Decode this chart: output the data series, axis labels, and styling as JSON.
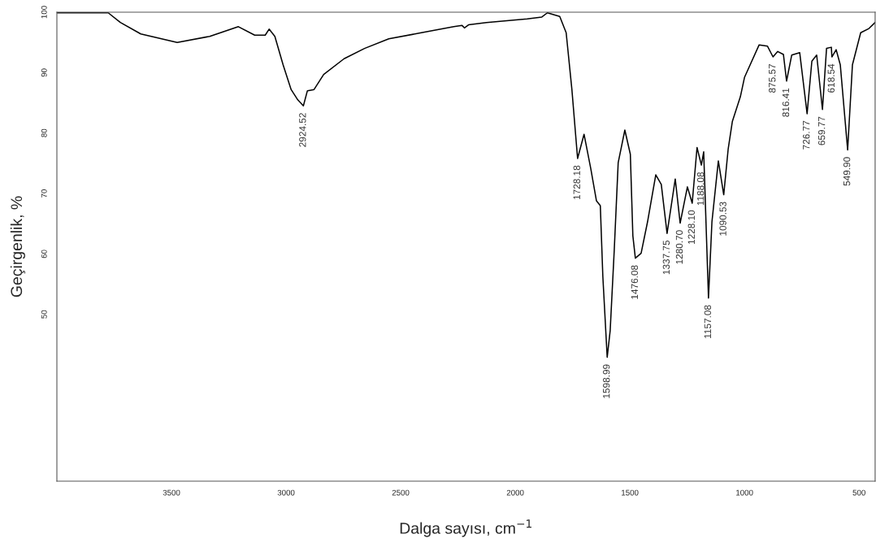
{
  "chart_data": {
    "type": "line",
    "xlabel": "Dalga sayısı, cm$^{−1}$",
    "ylabel": "Geçirgenlik, %",
    "xlim": [
      4000,
      430
    ],
    "ylim": [
      22.4,
      100
    ],
    "xticks": [
      3500,
      3000,
      2500,
      2000,
      1500,
      1000,
      500
    ],
    "yticks": [
      100,
      90,
      80,
      70,
      60,
      50
    ],
    "marker": "none",
    "line_style": "solid",
    "series": [
      {
        "color": "#000000",
        "x": [
          4000,
          3776,
          3723,
          3634,
          3475,
          3333,
          3208,
          3137,
          3091,
          3074,
          3049,
          3013,
          2978,
          2949,
          2924.52,
          2907,
          2878,
          2836,
          2747,
          2658,
          2552,
          2410,
          2268,
          2232,
          2222,
          2204,
          2126,
          1948,
          1884,
          1860,
          1806,
          1778,
          1753,
          1728.18,
          1700,
          1671,
          1646,
          1629,
          1618,
          1598.99,
          1586,
          1568,
          1551,
          1522,
          1498,
          1487,
          1476.08,
          1451,
          1423,
          1387,
          1363,
          1337.75,
          1302,
          1280.7,
          1249,
          1228.1,
          1207,
          1188.08,
          1178,
          1157.08,
          1142,
          1114,
          1090.53,
          1071,
          1053,
          1018,
          1000,
          936,
          900,
          875.57,
          855,
          830,
          816.41,
          794,
          759,
          726.77,
          706,
          685,
          659.77,
          642,
          621,
          618.54,
          600,
          582,
          549.9,
          529,
          493,
          457,
          430
        ],
        "values": [
          99.9,
          99.9,
          98.3,
          96.4,
          95.0,
          96.0,
          97.6,
          96.2,
          96.2,
          97.2,
          96.0,
          91.3,
          87.2,
          85.5,
          84.5,
          87.0,
          87.2,
          89.7,
          92.3,
          94.0,
          95.6,
          96.6,
          97.6,
          97.8,
          97.4,
          97.9,
          98.3,
          98.9,
          99.2,
          99.9,
          99.3,
          96.6,
          87.2,
          75.8,
          79.8,
          74.2,
          68.8,
          68.0,
          56.3,
          42.9,
          47.3,
          60.8,
          75.1,
          80.5,
          76.5,
          63.0,
          59.3,
          60.1,
          65.3,
          73.1,
          71.5,
          63.4,
          72.4,
          65.1,
          71.1,
          68.4,
          77.6,
          74.7,
          76.9,
          52.7,
          65.3,
          75.4,
          69.8,
          77.4,
          81.9,
          86.0,
          89.2,
          94.6,
          94.4,
          92.6,
          93.5,
          93.0,
          88.6,
          92.9,
          93.3,
          83.2,
          91.9,
          92.9,
          83.9,
          94.0,
          94.2,
          92.6,
          93.8,
          91.3,
          77.2,
          91.3,
          96.6,
          97.3,
          98.3
        ]
      }
    ],
    "annotations": [
      {
        "text": "2924.52",
        "x": 2924.52,
        "y": 84.5
      },
      {
        "text": "1728.18",
        "x": 1728.18,
        "y": 75.8
      },
      {
        "text": "1598.99",
        "x": 1598.99,
        "y": 42.9
      },
      {
        "text": "1476.08",
        "x": 1476.08,
        "y": 59.3
      },
      {
        "text": "1337.75",
        "x": 1337.75,
        "y": 63.4
      },
      {
        "text": "1280.70",
        "x": 1280.7,
        "y": 65.1
      },
      {
        "text": "1228.10",
        "x": 1228.1,
        "y": 68.4
      },
      {
        "text": "1188.08",
        "x": 1188.08,
        "y": 74.7
      },
      {
        "text": "1157.08",
        "x": 1157.08,
        "y": 52.7
      },
      {
        "text": "1090.53",
        "x": 1090.53,
        "y": 69.8
      },
      {
        "text": "875.57",
        "x": 875.57,
        "y": 92.6
      },
      {
        "text": "816.41",
        "x": 816.41,
        "y": 88.6
      },
      {
        "text": "726.77",
        "x": 726.77,
        "y": 83.2
      },
      {
        "text": "659.77",
        "x": 659.77,
        "y": 83.9
      },
      {
        "text": "618.54",
        "x": 618.54,
        "y": 92.6
      },
      {
        "text": "549.90",
        "x": 549.9,
        "y": 77.2
      }
    ]
  }
}
